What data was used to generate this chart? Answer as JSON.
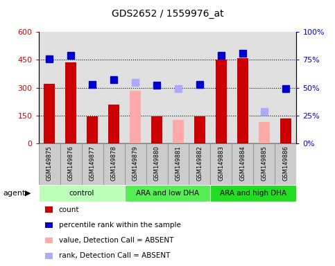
{
  "title": "GDS2652 / 1559976_at",
  "samples": [
    "GSM149875",
    "GSM149876",
    "GSM149877",
    "GSM149878",
    "GSM149879",
    "GSM149880",
    "GSM149881",
    "GSM149882",
    "GSM149883",
    "GSM149884",
    "GSM149885",
    "GSM149886"
  ],
  "bar_values": [
    320,
    435,
    148,
    210,
    null,
    145,
    null,
    148,
    450,
    460,
    null,
    135
  ],
  "bar_absent_values": [
    null,
    null,
    null,
    null,
    285,
    null,
    128,
    null,
    null,
    null,
    118,
    null
  ],
  "rank_values": [
    76,
    79,
    53,
    57,
    null,
    52,
    null,
    53,
    79,
    81,
    null,
    49
  ],
  "rank_absent_values": [
    null,
    null,
    null,
    null,
    55,
    null,
    49,
    null,
    null,
    null,
    29,
    null
  ],
  "bar_color": "#cc0000",
  "bar_absent_color": "#ffaaaa",
  "rank_color": "#0000cc",
  "rank_absent_color": "#aaaaff",
  "ylim_left": [
    0,
    600
  ],
  "ylim_right": [
    0,
    100
  ],
  "yticks_left": [
    0,
    150,
    300,
    450,
    600
  ],
  "yticks_right": [
    0,
    25,
    50,
    75,
    100
  ],
  "ytick_labels_left": [
    "0",
    "150",
    "300",
    "450",
    "600"
  ],
  "ytick_labels_right": [
    "0%",
    "25%",
    "50%",
    "75%",
    "100%"
  ],
  "groups": [
    {
      "label": "control",
      "start": 0,
      "end": 3,
      "color": "#bbffbb"
    },
    {
      "label": "ARA and low DHA",
      "start": 4,
      "end": 7,
      "color": "#55ee55"
    },
    {
      "label": "ARA and high DHA",
      "start": 8,
      "end": 11,
      "color": "#22dd22"
    }
  ],
  "legend_items": [
    {
      "label": "count",
      "color": "#cc0000"
    },
    {
      "label": "percentile rank within the sample",
      "color": "#0000cc"
    },
    {
      "label": "value, Detection Call = ABSENT",
      "color": "#ffaaaa"
    },
    {
      "label": "rank, Detection Call = ABSENT",
      "color": "#aaaaff"
    }
  ],
  "bar_width": 0.5,
  "rank_marker_size": 7
}
